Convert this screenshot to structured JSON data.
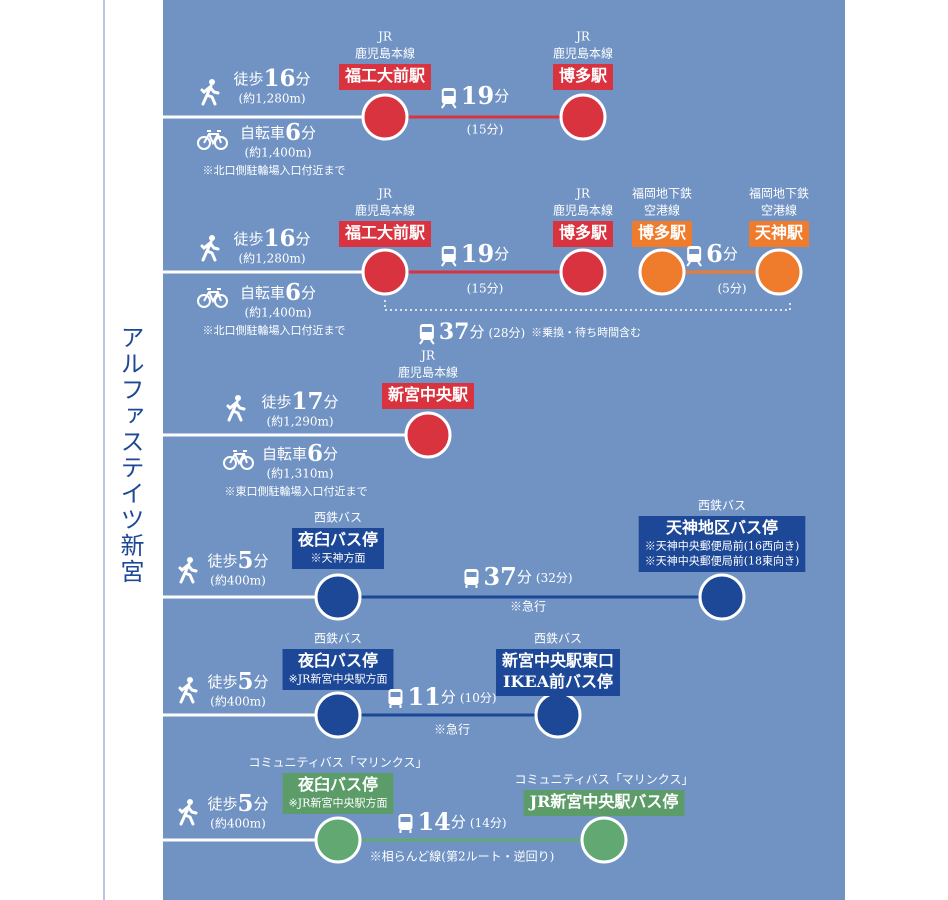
{
  "title": "アルファステイツ新宮",
  "routes": [
    {
      "access": [
        {
          "mode": "徒歩",
          "number": "16",
          "unit": "分",
          "distance": "(約1,280m)"
        },
        {
          "mode": "自転車",
          "number": "6",
          "unit": "分",
          "distance": "(約1,400m)",
          "note": "※北口側駐輪場入口付近まで"
        }
      ],
      "stops": [
        {
          "operator": [
            "JR",
            "鹿児島本線"
          ],
          "name": [
            "福工大前駅"
          ]
        },
        {
          "operator": [
            "JR",
            "鹿児島本線"
          ],
          "name": [
            "博多駅"
          ]
        }
      ],
      "legs": [
        {
          "number": "19",
          "unit": "分",
          "detail": "(15分)"
        }
      ]
    },
    {
      "access": [
        {
          "mode": "徒歩",
          "number": "16",
          "unit": "分",
          "distance": "(約1,280m)"
        },
        {
          "mode": "自転車",
          "number": "6",
          "unit": "分",
          "distance": "(約1,400m)",
          "note": "※北口側駐輪場入口付近まで"
        }
      ],
      "stops": [
        {
          "operator": [
            "JR",
            "鹿児島本線"
          ],
          "name": [
            "福工大前駅"
          ]
        },
        {
          "operator": [
            "JR",
            "鹿児島本線"
          ],
          "name": [
            "博多駅"
          ]
        },
        {
          "operator": [
            "福岡地下鉄",
            "空港線"
          ],
          "name": [
            "博多駅"
          ]
        },
        {
          "operator": [
            "福岡地下鉄",
            "空港線"
          ],
          "name": [
            "天神駅"
          ]
        }
      ],
      "legs": [
        {
          "number": "19",
          "unit": "分",
          "detail": "(15分)"
        },
        {
          "number": "6",
          "unit": "分",
          "detail": "(5分)"
        }
      ],
      "total": {
        "number": "37",
        "unit": "分",
        "detail": "(28分)",
        "note": "※乗換・待ち時間含む"
      }
    },
    {
      "access": [
        {
          "mode": "徒歩",
          "number": "17",
          "unit": "分",
          "distance": "(約1,290m)"
        },
        {
          "mode": "自転車",
          "number": "6",
          "unit": "分",
          "distance": "(約1,310m)",
          "note": "※東口側駐輪場入口付近まで"
        }
      ],
      "stops": [
        {
          "operator": [
            "JR",
            "鹿児島本線"
          ],
          "name": [
            "新宮中央駅"
          ]
        }
      ],
      "legs": []
    },
    {
      "access": [
        {
          "mode": "徒歩",
          "number": "5",
          "unit": "分",
          "distance": "(約400m)"
        }
      ],
      "stops": [
        {
          "operator": [
            "西鉄バス"
          ],
          "name": [
            "夜臼バス停",
            "※天神方面"
          ]
        },
        {
          "operator": [
            "西鉄バス"
          ],
          "name": [
            "天神地区バス停",
            "※天神中央郵便局前(16西向き)",
            "※天神中央郵便局前(18東向き)"
          ]
        }
      ],
      "legs": [
        {
          "number": "37",
          "unit": "分",
          "detail": "(32分)",
          "note": "※急行"
        }
      ]
    },
    {
      "access": [
        {
          "mode": "徒歩",
          "number": "5",
          "unit": "分",
          "distance": "(約400m)"
        }
      ],
      "stops": [
        {
          "operator": [
            "西鉄バス"
          ],
          "name": [
            "夜臼バス停",
            "※JR新宮中央駅方面"
          ]
        },
        {
          "operator": [
            "西鉄バス"
          ],
          "name": [
            "新宮中央駅東口",
            "IKEA前バス停"
          ]
        }
      ],
      "legs": [
        {
          "number": "11",
          "unit": "分",
          "detail": "(10分)",
          "note": "※急行"
        }
      ]
    },
    {
      "access": [
        {
          "mode": "徒歩",
          "number": "5",
          "unit": "分",
          "distance": "(約400m)"
        }
      ],
      "stops": [
        {
          "operator": [
            "コミュニティバス「マリンクス」"
          ],
          "name": [
            "夜臼バス停",
            "※JR新宮中央駅方面"
          ]
        },
        {
          "operator": [
            "コミュニティバス「マリンクス」"
          ],
          "name": [
            "JR新宮中央駅バス停"
          ]
        }
      ],
      "legs": [
        {
          "number": "14",
          "unit": "分",
          "detail": "(14分)",
          "note": "※相らんど線(第2ルート・逆回り)"
        }
      ]
    }
  ]
}
